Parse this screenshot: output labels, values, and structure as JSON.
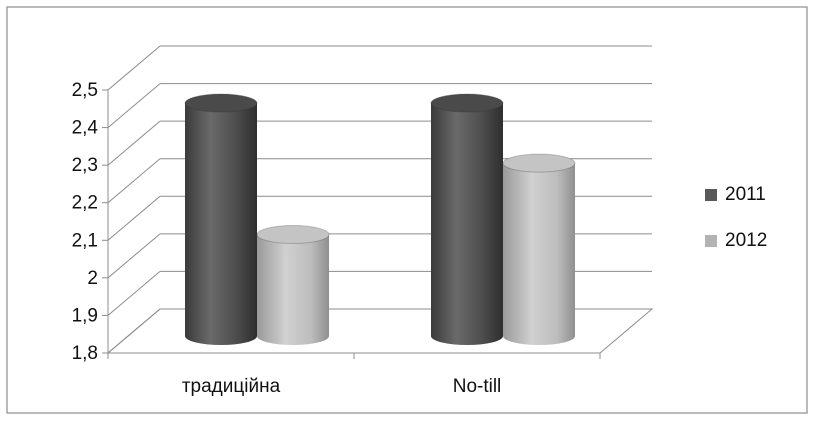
{
  "chart_data": {
    "type": "bar",
    "style": "3d-cylinder",
    "categories": [
      "традиційна",
      "No-till"
    ],
    "series": [
      {
        "name": "2011",
        "values": [
          2.42,
          2.42
        ],
        "color": "#595959"
      },
      {
        "name": "2012",
        "values": [
          2.07,
          2.26
        ],
        "color": "#b3b3b3"
      }
    ],
    "ylim": [
      1.8,
      2.5
    ],
    "yticks": [
      "1,8",
      "1,9",
      "2",
      "2,1",
      "2,2",
      "2,3",
      "2,4",
      "2,5"
    ],
    "grid": true,
    "legend_position": "right",
    "title": "",
    "xlabel": "",
    "ylabel": ""
  }
}
